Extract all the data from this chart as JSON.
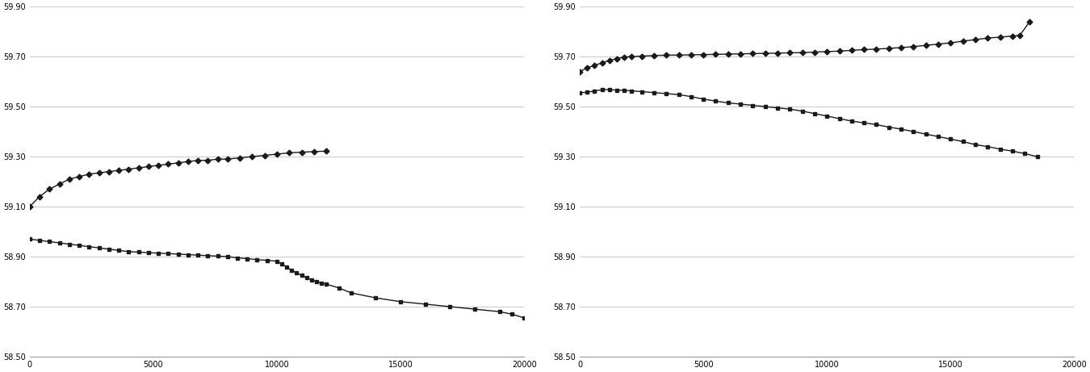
{
  "left": {
    "ask_x": [
      0,
      400,
      800,
      1200,
      1600,
      2000,
      2400,
      2800,
      3200,
      3600,
      4000,
      4400,
      4800,
      5200,
      5600,
      6000,
      6400,
      6800,
      7200,
      7600,
      8000,
      8500,
      9000,
      9500,
      10000,
      10500,
      11000,
      11500,
      12000
    ],
    "ask_y": [
      59.1,
      59.14,
      59.17,
      59.19,
      59.21,
      59.22,
      59.23,
      59.235,
      59.24,
      59.245,
      59.25,
      59.255,
      59.26,
      59.265,
      59.27,
      59.275,
      59.28,
      59.285,
      59.285,
      59.29,
      59.29,
      59.295,
      59.3,
      59.305,
      59.31,
      59.315,
      59.318,
      59.32,
      59.322
    ],
    "bid_x": [
      0,
      400,
      800,
      1200,
      1600,
      2000,
      2400,
      2800,
      3200,
      3600,
      4000,
      4400,
      4800,
      5200,
      5600,
      6000,
      6400,
      6800,
      7200,
      7600,
      8000,
      8400,
      8800,
      9200,
      9600,
      10000,
      10200,
      10400,
      10600,
      10800,
      11000,
      11200,
      11400,
      11600,
      11800,
      12000,
      12500,
      13000,
      14000,
      15000,
      16000,
      17000,
      18000,
      19000,
      19500,
      20000
    ],
    "bid_y": [
      58.97,
      58.965,
      58.96,
      58.955,
      58.95,
      58.945,
      58.94,
      58.935,
      58.93,
      58.925,
      58.92,
      58.918,
      58.916,
      58.914,
      58.912,
      58.91,
      58.908,
      58.906,
      58.904,
      58.902,
      58.9,
      58.895,
      58.892,
      58.888,
      58.885,
      58.882,
      58.87,
      58.858,
      58.845,
      58.835,
      58.825,
      58.815,
      58.808,
      58.8,
      58.795,
      58.79,
      58.775,
      58.755,
      58.735,
      58.72,
      58.71,
      58.7,
      58.69,
      58.68,
      58.67,
      58.655
    ],
    "xlim": [
      0,
      20000
    ],
    "ylim": [
      58.5,
      59.9
    ],
    "yticks": [
      58.5,
      58.7,
      58.9,
      59.1,
      59.3,
      59.5,
      59.7,
      59.9
    ],
    "xticks": [
      0,
      5000,
      10000,
      15000,
      20000
    ]
  },
  "right": {
    "ask_x": [
      0,
      300,
      600,
      900,
      1200,
      1500,
      1800,
      2100,
      2500,
      3000,
      3500,
      4000,
      4500,
      5000,
      5500,
      6000,
      6500,
      7000,
      7500,
      8000,
      8500,
      9000,
      9500,
      10000,
      10500,
      11000,
      11500,
      12000,
      12500,
      13000,
      13500,
      14000,
      14500,
      15000,
      15500,
      16000,
      16500,
      17000,
      17500,
      17800,
      18200
    ],
    "ask_y": [
      59.64,
      59.655,
      59.665,
      59.675,
      59.685,
      59.692,
      59.698,
      59.7,
      59.702,
      59.704,
      59.706,
      59.706,
      59.707,
      59.708,
      59.709,
      59.71,
      59.711,
      59.712,
      59.713,
      59.714,
      59.715,
      59.716,
      59.718,
      59.72,
      59.722,
      59.725,
      59.728,
      59.73,
      59.733,
      59.736,
      59.74,
      59.745,
      59.75,
      59.755,
      59.762,
      59.768,
      59.774,
      59.778,
      59.782,
      59.785,
      59.84
    ],
    "bid_x": [
      0,
      300,
      600,
      900,
      1200,
      1500,
      1800,
      2100,
      2500,
      3000,
      3500,
      4000,
      4500,
      5000,
      5500,
      6000,
      6500,
      7000,
      7500,
      8000,
      8500,
      9000,
      9500,
      10000,
      10500,
      11000,
      11500,
      12000,
      12500,
      13000,
      13500,
      14000,
      14500,
      15000,
      15500,
      16000,
      16500,
      17000,
      17500,
      18000,
      18500
    ],
    "bid_y": [
      59.555,
      59.558,
      59.562,
      59.568,
      59.568,
      59.566,
      59.565,
      59.563,
      59.56,
      59.556,
      59.552,
      59.548,
      59.54,
      59.53,
      59.522,
      59.515,
      59.51,
      59.505,
      59.5,
      59.495,
      59.49,
      59.482,
      59.472,
      59.462,
      59.452,
      59.442,
      59.435,
      59.428,
      59.418,
      59.41,
      59.4,
      59.39,
      59.38,
      59.37,
      59.36,
      59.348,
      59.34,
      59.33,
      59.322,
      59.312,
      59.3
    ],
    "xlim": [
      0,
      20000
    ],
    "ylim": [
      58.5,
      59.9
    ],
    "yticks": [
      58.5,
      58.7,
      58.9,
      59.1,
      59.3,
      59.5,
      59.7,
      59.9
    ],
    "xticks": [
      0,
      5000,
      10000,
      15000,
      20000
    ]
  },
  "line_color": "#1a1a1a",
  "marker_diamond": "D",
  "marker_square": "s",
  "marker_size": 3.5,
  "line_width": 1.0,
  "bg_color": "#ffffff",
  "grid_color": "#cccccc"
}
